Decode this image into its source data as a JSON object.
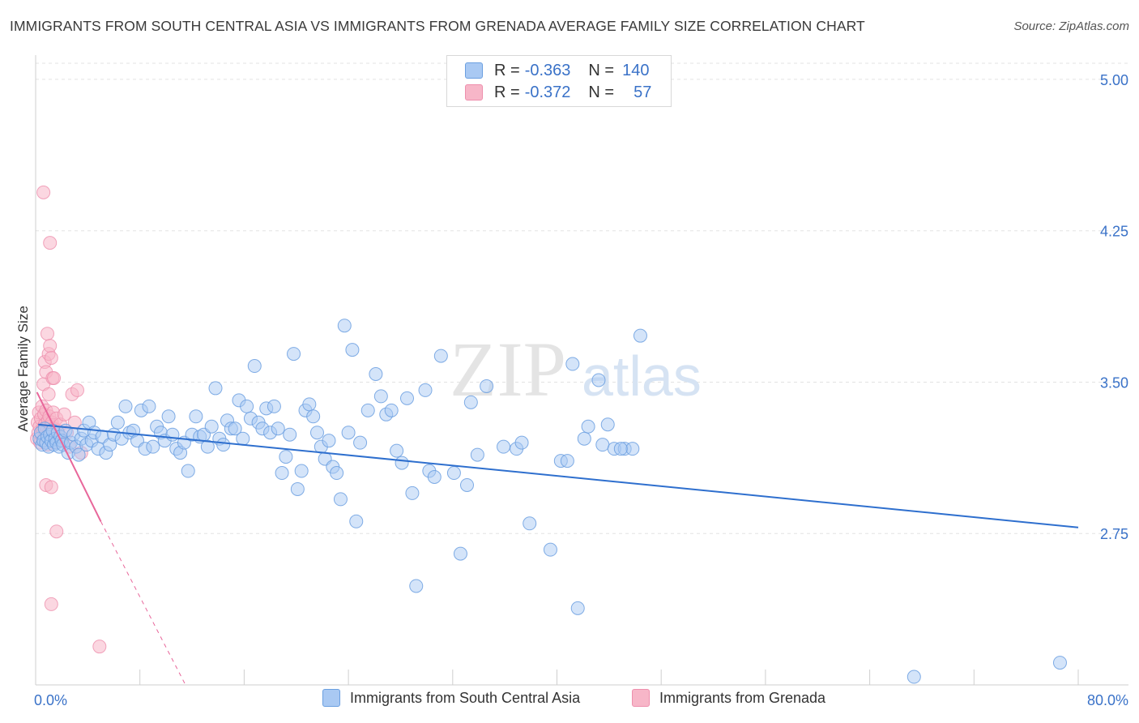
{
  "header": {
    "title": "IMMIGRANTS FROM SOUTH CENTRAL ASIA VS IMMIGRANTS FROM GRENADA AVERAGE FAMILY SIZE CORRELATION CHART",
    "source": "Source: ZipAtlas.com"
  },
  "watermark": {
    "zip": "ZIP",
    "atlas": "atlas"
  },
  "legend": {
    "r_label": "R =",
    "n_label": "N =",
    "series": [
      {
        "r": "-0.363",
        "n": "140"
      },
      {
        "r": "-0.372",
        "n": "57"
      }
    ]
  },
  "bottom_legend": {
    "items": [
      "Immigrants from South Central Asia",
      "Immigrants from Grenada"
    ]
  },
  "colors": {
    "blue_fill": "#a9c9f3",
    "blue_stroke": "#6b9fe0",
    "blue_line": "#2e6fce",
    "pink_fill": "#f7b6c8",
    "pink_stroke": "#ee8fad",
    "pink_line": "#e8669a",
    "axis_text": "#3a72c8",
    "grid": "#e3e3e3"
  },
  "chart_data": {
    "type": "scatter",
    "title": "IMMIGRANTS FROM SOUTH CENTRAL ASIA VS IMMIGRANTS FROM GRENADA AVERAGE FAMILY SIZE CORRELATION CHART",
    "xlabel": "",
    "ylabel": "Average Family Size",
    "xlim": [
      0,
      80
    ],
    "ylim": [
      2.0,
      5.08
    ],
    "x_tick_labels": [
      "0.0%",
      "80.0%"
    ],
    "y_ticks": [
      2.75,
      3.5,
      4.25,
      5.0
    ],
    "y_tick_labels": [
      "2.75",
      "3.50",
      "4.25",
      "5.00"
    ],
    "grid": true,
    "legend_position": "top-center",
    "series": [
      {
        "name": "Immigrants from South Central Asia",
        "r": -0.363,
        "n": 140,
        "trend": {
          "x": [
            0.2,
            80
          ],
          "y": [
            3.29,
            2.78
          ]
        },
        "points": [
          [
            0.3,
            3.22
          ],
          [
            0.4,
            3.25
          ],
          [
            0.5,
            3.19
          ],
          [
            0.6,
            3.21
          ],
          [
            0.7,
            3.27
          ],
          [
            0.8,
            3.2
          ],
          [
            0.9,
            3.23
          ],
          [
            1.0,
            3.18
          ],
          [
            1.1,
            3.24
          ],
          [
            1.2,
            3.21
          ],
          [
            1.3,
            3.26
          ],
          [
            1.4,
            3.19
          ],
          [
            1.5,
            3.22
          ],
          [
            1.6,
            3.2
          ],
          [
            1.7,
            3.25
          ],
          [
            1.8,
            3.18
          ],
          [
            1.9,
            3.23
          ],
          [
            2.0,
            3.21
          ],
          [
            2.1,
            3.19
          ],
          [
            2.3,
            3.26
          ],
          [
            2.5,
            3.15
          ],
          [
            2.7,
            3.2
          ],
          [
            2.9,
            3.24
          ],
          [
            3.1,
            3.18
          ],
          [
            3.3,
            3.14
          ],
          [
            3.5,
            3.22
          ],
          [
            3.7,
            3.26
          ],
          [
            3.9,
            3.19
          ],
          [
            4.1,
            3.3
          ],
          [
            4.3,
            3.21
          ],
          [
            4.5,
            3.25
          ],
          [
            4.8,
            3.17
          ],
          [
            5.1,
            3.23
          ],
          [
            5.4,
            3.15
          ],
          [
            5.7,
            3.19
          ],
          [
            6.0,
            3.24
          ],
          [
            6.3,
            3.3
          ],
          [
            6.6,
            3.22
          ],
          [
            6.9,
            3.38
          ],
          [
            7.2,
            3.25
          ],
          [
            7.5,
            3.26
          ],
          [
            7.8,
            3.21
          ],
          [
            8.1,
            3.36
          ],
          [
            8.4,
            3.17
          ],
          [
            8.7,
            3.38
          ],
          [
            9.0,
            3.18
          ],
          [
            9.3,
            3.28
          ],
          [
            9.6,
            3.25
          ],
          [
            9.9,
            3.21
          ],
          [
            10.2,
            3.33
          ],
          [
            10.5,
            3.24
          ],
          [
            10.8,
            3.17
          ],
          [
            11.1,
            3.15
          ],
          [
            11.4,
            3.2
          ],
          [
            11.7,
            3.06
          ],
          [
            12.0,
            3.24
          ],
          [
            12.3,
            3.33
          ],
          [
            12.6,
            3.23
          ],
          [
            12.9,
            3.24
          ],
          [
            13.2,
            3.18
          ],
          [
            13.5,
            3.28
          ],
          [
            13.8,
            3.47
          ],
          [
            14.1,
            3.22
          ],
          [
            14.4,
            3.19
          ],
          [
            14.7,
            3.31
          ],
          [
            15.0,
            3.27
          ],
          [
            15.3,
            3.27
          ],
          [
            15.6,
            3.41
          ],
          [
            15.9,
            3.22
          ],
          [
            16.2,
            3.38
          ],
          [
            16.5,
            3.32
          ],
          [
            16.8,
            3.58
          ],
          [
            17.1,
            3.3
          ],
          [
            17.4,
            3.27
          ],
          [
            17.7,
            3.37
          ],
          [
            18.0,
            3.25
          ],
          [
            18.3,
            3.38
          ],
          [
            18.6,
            3.27
          ],
          [
            18.9,
            3.05
          ],
          [
            19.2,
            3.13
          ],
          [
            19.5,
            3.24
          ],
          [
            19.8,
            3.64
          ],
          [
            20.1,
            2.97
          ],
          [
            20.4,
            3.06
          ],
          [
            20.7,
            3.36
          ],
          [
            21.0,
            3.39
          ],
          [
            21.3,
            3.33
          ],
          [
            21.6,
            3.25
          ],
          [
            21.9,
            3.18
          ],
          [
            22.2,
            3.12
          ],
          [
            22.5,
            3.21
          ],
          [
            22.8,
            3.08
          ],
          [
            23.1,
            3.05
          ],
          [
            23.4,
            2.92
          ],
          [
            23.7,
            3.78
          ],
          [
            24.0,
            3.25
          ],
          [
            24.3,
            3.66
          ],
          [
            24.6,
            2.81
          ],
          [
            24.9,
            3.2
          ],
          [
            25.5,
            3.36
          ],
          [
            26.1,
            3.54
          ],
          [
            26.5,
            3.43
          ],
          [
            26.9,
            3.34
          ],
          [
            27.3,
            3.36
          ],
          [
            27.7,
            3.16
          ],
          [
            28.1,
            3.1
          ],
          [
            28.5,
            3.42
          ],
          [
            28.9,
            2.95
          ],
          [
            29.2,
            2.49
          ],
          [
            29.9,
            3.46
          ],
          [
            30.2,
            3.06
          ],
          [
            30.6,
            3.03
          ],
          [
            31.1,
            3.63
          ],
          [
            32.1,
            3.05
          ],
          [
            32.6,
            2.65
          ],
          [
            33.1,
            2.99
          ],
          [
            33.4,
            3.4
          ],
          [
            33.9,
            3.14
          ],
          [
            34.6,
            3.48
          ],
          [
            35.9,
            3.18
          ],
          [
            36.9,
            3.17
          ],
          [
            37.3,
            3.2
          ],
          [
            37.9,
            2.8
          ],
          [
            39.5,
            2.67
          ],
          [
            40.3,
            3.11
          ],
          [
            40.8,
            3.11
          ],
          [
            41.2,
            3.59
          ],
          [
            41.6,
            2.38
          ],
          [
            42.1,
            3.22
          ],
          [
            42.4,
            3.28
          ],
          [
            43.2,
            3.51
          ],
          [
            43.5,
            3.19
          ],
          [
            43.9,
            3.29
          ],
          [
            44.4,
            3.17
          ],
          [
            45.2,
            3.17
          ],
          [
            46.4,
            3.73
          ],
          [
            67.4,
            2.04
          ],
          [
            78.6,
            2.11
          ],
          [
            45.8,
            3.17
          ],
          [
            44.9,
            3.17
          ]
        ]
      },
      {
        "name": "Immigrants from Grenada",
        "r": -0.372,
        "n": 57,
        "trend_solid": {
          "x": [
            0.1,
            5.0
          ],
          "y": [
            3.45,
            2.81
          ]
        },
        "trend_dashed": {
          "x": [
            5.0,
            11.5
          ],
          "y": [
            2.81,
            2.0
          ]
        },
        "points": [
          [
            0.1,
            3.22
          ],
          [
            0.15,
            3.3
          ],
          [
            0.2,
            3.25
          ],
          [
            0.25,
            3.35
          ],
          [
            0.3,
            3.28
          ],
          [
            0.35,
            3.2
          ],
          [
            0.4,
            3.32
          ],
          [
            0.45,
            3.24
          ],
          [
            0.5,
            3.38
          ],
          [
            0.55,
            3.27
          ],
          [
            0.6,
            3.21
          ],
          [
            0.65,
            3.34
          ],
          [
            0.7,
            3.29
          ],
          [
            0.75,
            3.23
          ],
          [
            0.8,
            3.36
          ],
          [
            0.85,
            3.26
          ],
          [
            0.9,
            3.19
          ],
          [
            0.95,
            3.31
          ],
          [
            1.0,
            3.25
          ],
          [
            1.05,
            3.33
          ],
          [
            1.1,
            3.21
          ],
          [
            1.15,
            3.28
          ],
          [
            1.2,
            3.24
          ],
          [
            1.25,
            3.3
          ],
          [
            1.3,
            3.22
          ],
          [
            1.35,
            3.35
          ],
          [
            1.4,
            3.27
          ],
          [
            1.5,
            3.2
          ],
          [
            1.6,
            3.32
          ],
          [
            1.7,
            3.26
          ],
          [
            1.8,
            3.23
          ],
          [
            1.9,
            3.29
          ],
          [
            2.0,
            3.21
          ],
          [
            2.2,
            3.34
          ],
          [
            2.4,
            3.25
          ],
          [
            2.6,
            3.18
          ],
          [
            2.8,
            3.44
          ],
          [
            3.0,
            3.3
          ],
          [
            3.2,
            3.46
          ],
          [
            3.5,
            3.15
          ],
          [
            0.6,
            3.49
          ],
          [
            0.7,
            3.6
          ],
          [
            0.8,
            3.55
          ],
          [
            0.9,
            3.74
          ],
          [
            1.0,
            3.64
          ],
          [
            1.1,
            3.68
          ],
          [
            1.2,
            3.62
          ],
          [
            1.3,
            3.52
          ],
          [
            1.4,
            3.52
          ],
          [
            1.0,
            3.44
          ],
          [
            0.6,
            4.44
          ],
          [
            1.1,
            4.19
          ],
          [
            1.2,
            2.4
          ],
          [
            1.6,
            2.76
          ],
          [
            0.8,
            2.99
          ],
          [
            1.2,
            2.98
          ],
          [
            4.9,
            2.19
          ]
        ]
      }
    ]
  }
}
